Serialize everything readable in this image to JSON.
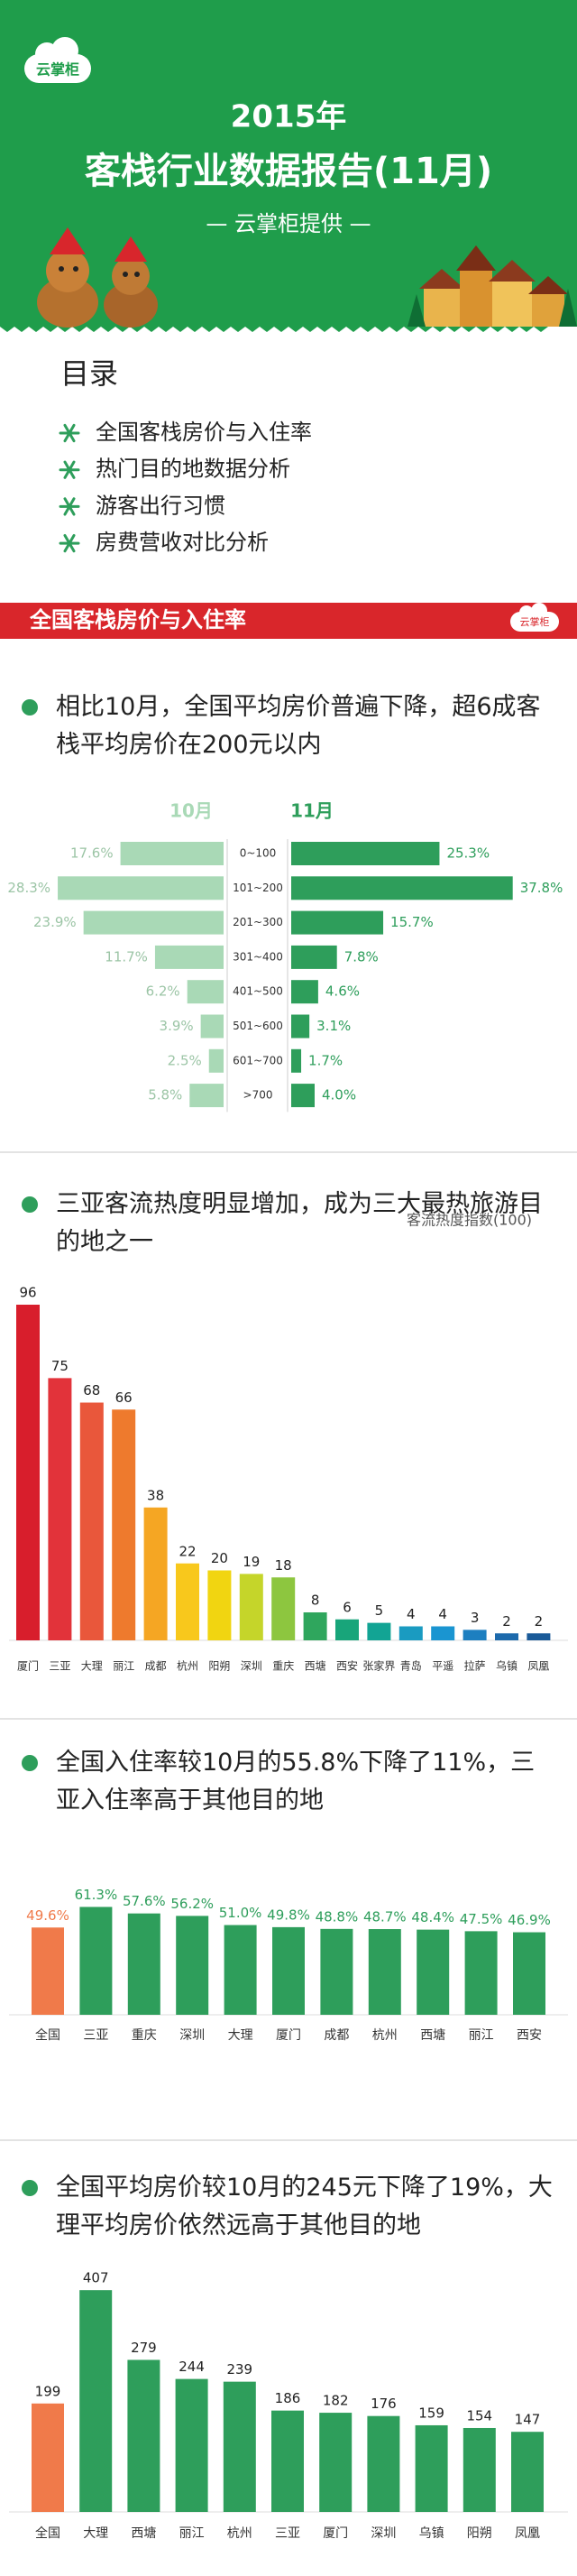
{
  "header": {
    "logo": "云掌柜",
    "title_line1": "2015年",
    "title_line2": "客栈行业数据报告(11月)",
    "byline": "— 云掌柜提供 —"
  },
  "toc": {
    "title": "目录",
    "items": [
      "全国客栈房价与入住率",
      "热门目的地数据分析",
      "游客出行习惯",
      "房费营收对比分析"
    ]
  },
  "section": {
    "title": "全国客栈房价与入住率",
    "logo": "云掌柜"
  },
  "chart_data": [
    {
      "type": "bar",
      "orientation": "horizontal",
      "title": "相比10月，全国平均房价普遍下降，超6成客栈平均房价在200元以内",
      "categories": [
        "0~100",
        "101~200",
        "201~300",
        "301~400",
        "401~500",
        "501~600",
        "601~700",
        ">700"
      ],
      "series": [
        {
          "name": "10月",
          "color": "#a9d9b6",
          "values": [
            17.6,
            28.3,
            23.9,
            11.7,
            6.2,
            3.9,
            2.5,
            5.8
          ],
          "value_labels": [
            "17.6%",
            "28.3%",
            "23.9%",
            "11.7%",
            "6.2%",
            "3.9%",
            "2.5%",
            "5.8%"
          ]
        },
        {
          "name": "11月",
          "color": "#2e9e5b",
          "values": [
            25.3,
            37.8,
            15.7,
            7.8,
            4.6,
            3.1,
            1.7,
            4.0
          ],
          "value_labels": [
            "25.3%",
            "37.8%",
            "15.7%",
            "7.8%",
            "4.6%",
            "3.1%",
            "1.7%",
            "4.0%"
          ]
        }
      ]
    },
    {
      "type": "bar",
      "title": "三亚客流热度明显增加，成为三大最热旅游目的地之一",
      "annotation": "客流热度指数(100)",
      "categories": [
        "厦门",
        "三亚",
        "大理",
        "丽江",
        "成都",
        "杭州",
        "阳朔",
        "深圳",
        "重庆",
        "西塘",
        "西安",
        "张家界",
        "青岛",
        "平遥",
        "拉萨",
        "乌镇",
        "凤凰"
      ],
      "values": [
        96,
        75,
        68,
        66,
        38,
        22,
        20,
        19,
        18,
        8,
        6,
        5,
        4,
        4,
        3,
        2,
        2
      ],
      "colors": [
        "#d81e2c",
        "#e2333a",
        "#e9573b",
        "#ee7a2d",
        "#f5a623",
        "#f8c81c",
        "#f1d511",
        "#c5d52a",
        "#8dc63f",
        "#2fa65d",
        "#18a57a",
        "#12a494",
        "#1a9bc1",
        "#1a95d1",
        "#1d7fc0",
        "#1d6aac",
        "#1a5a98"
      ]
    },
    {
      "type": "bar",
      "title": "全国入住率较10月的55.8%下降了11%，三亚入住率高于其他目的地",
      "categories": [
        "全国",
        "三亚",
        "重庆",
        "深圳",
        "大理",
        "厦门",
        "成都",
        "杭州",
        "西塘",
        "丽江",
        "西安"
      ],
      "values": [
        49.6,
        61.3,
        57.6,
        56.2,
        51.0,
        49.8,
        48.8,
        48.7,
        48.4,
        47.5,
        46.9
      ],
      "value_labels": [
        "49.6%",
        "61.3%",
        "57.6%",
        "56.2%",
        "51.0%",
        "49.8%",
        "48.8%",
        "48.7%",
        "48.4%",
        "47.5%",
        "46.9%"
      ],
      "colors": [
        "#f07a4a",
        "#2e9e5b",
        "#2e9e5b",
        "#2e9e5b",
        "#2e9e5b",
        "#2e9e5b",
        "#2e9e5b",
        "#2e9e5b",
        "#2e9e5b",
        "#2e9e5b",
        "#2e9e5b"
      ]
    },
    {
      "type": "bar",
      "title": "全国平均房价较10月的245元下降了19%，大理平均房价依然远高于其他目的地",
      "categories": [
        "全国",
        "大理",
        "西塘",
        "丽江",
        "杭州",
        "三亚",
        "厦门",
        "深圳",
        "乌镇",
        "阳朔",
        "凤凰"
      ],
      "values": [
        199,
        407,
        279,
        244,
        239,
        186,
        182,
        176,
        159,
        154,
        147
      ],
      "colors": [
        "#f07a4a",
        "#2e9e5b",
        "#2e9e5b",
        "#2e9e5b",
        "#2e9e5b",
        "#2e9e5b",
        "#2e9e5b",
        "#2e9e5b",
        "#2e9e5b",
        "#2e9e5b",
        "#2e9e5b"
      ]
    }
  ]
}
